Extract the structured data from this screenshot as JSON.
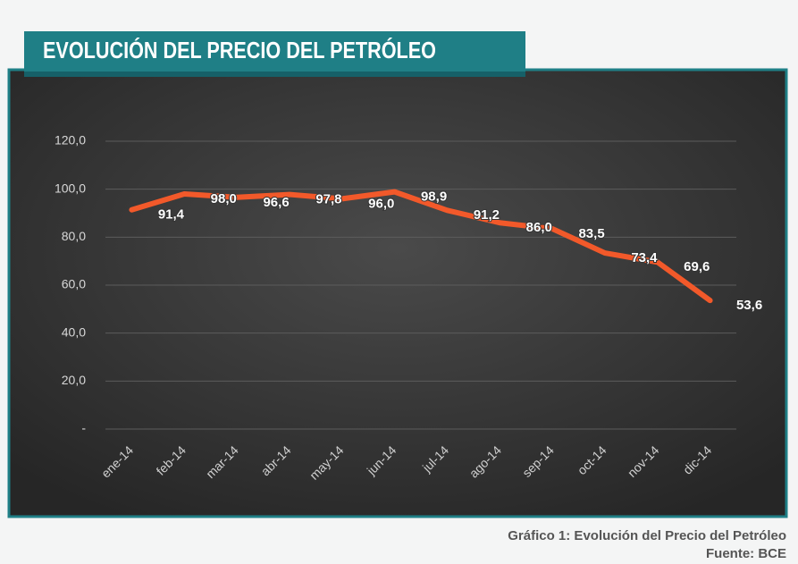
{
  "chart_data": {
    "type": "line",
    "title": "EVOLUCIÓN DEL PRECIO DEL PETRÓLEO",
    "caption": "Gráfico 1: Evolución del Precio del Petróleo",
    "source": "Fuente: BCE",
    "categories": [
      "ene-14",
      "feb-14",
      "mar-14",
      "abr-14",
      "may-14",
      "jun-14",
      "jul-14",
      "ago-14",
      "sep-14",
      "oct-14",
      "nov-14",
      "dic-14"
    ],
    "values": [
      91.4,
      98.0,
      96.6,
      97.8,
      96.0,
      98.9,
      91.2,
      86.0,
      83.5,
      73.4,
      69.6,
      53.6
    ],
    "value_labels": [
      "91,4",
      "98,0",
      "96,6",
      "97,8",
      "96,0",
      "98,9",
      "91,2",
      "86,0",
      "83,5",
      "73,4",
      "69,6",
      "53,6"
    ],
    "color": "#f2592a",
    "ylim": [
      0,
      120
    ],
    "yticks": [
      {
        "value": 0,
        "label": "-"
      },
      {
        "value": 20,
        "label": "20,0"
      },
      {
        "value": 40,
        "label": "40,0"
      },
      {
        "value": 60,
        "label": "60,0"
      },
      {
        "value": 80,
        "label": "80,0"
      },
      {
        "value": 100,
        "label": "100,0"
      },
      {
        "value": 120,
        "label": "120,0"
      }
    ],
    "grid": true
  }
}
